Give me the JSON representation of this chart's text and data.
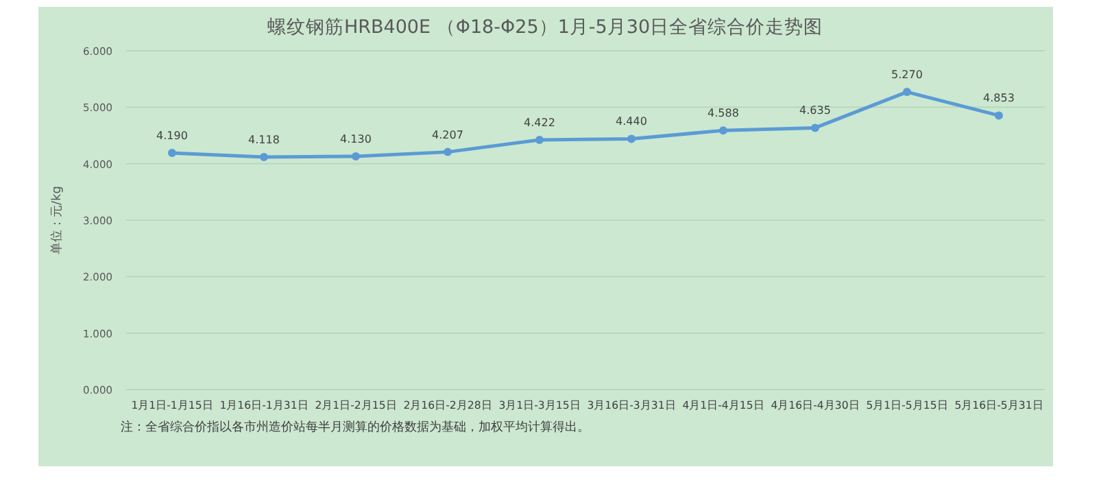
{
  "chart_data": {
    "type": "line",
    "title": "螺纹钢筋HRB400E （Φ18-Φ25）1月-5月30日全省综合价走势图",
    "ylabel": "单位：元/kg",
    "categories": [
      "1月1日-1月15日",
      "1月16日-1月31日",
      "2月1日-2月15日",
      "2月16日-2月28日",
      "3月1日-3月15日",
      "3月16日-3月31日",
      "4月1日-4月15日",
      "4月16日-4月30日",
      "5月1日-5月15日",
      "5月16日-5月31日"
    ],
    "series": [
      {
        "color": "#5b9bd5",
        "values": [
          4.19,
          4.118,
          4.13,
          4.207,
          4.422,
          4.44,
          4.588,
          4.635,
          5.27,
          4.853
        ],
        "value_labels": [
          "4.190",
          "4.118",
          "4.130",
          "4.207",
          "4.422",
          "4.440",
          "4.588",
          "4.635",
          "5.270",
          "4.853"
        ]
      }
    ],
    "ylim": [
      0,
      6
    ],
    "yticks": [
      {
        "value": 0,
        "label": "0.000"
      },
      {
        "value": 1,
        "label": "1.000"
      },
      {
        "value": 2,
        "label": "2.000"
      },
      {
        "value": 3,
        "label": "3.000"
      },
      {
        "value": 4,
        "label": "4.000"
      },
      {
        "value": 5,
        "label": "5.000"
      },
      {
        "value": 6,
        "label": "6.000"
      }
    ],
    "grid": "y",
    "marker": "circle",
    "line_style": "solid",
    "annotations": [
      "注：全省综合价指以各市州造价站每半月测算的价格数据为基础，加权平均计算得出。"
    ]
  }
}
